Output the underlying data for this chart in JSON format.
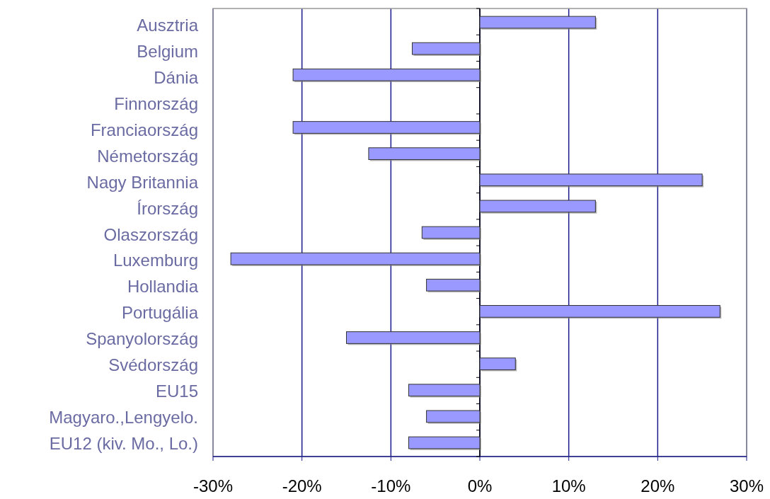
{
  "chart_data": {
    "type": "bar",
    "orientation": "horizontal",
    "categories": [
      "Ausztria",
      "Belgium",
      "Dánia",
      "Finnország",
      "Franciaország",
      "Németország",
      "Nagy Britannia",
      "Írország",
      "Olaszország",
      "Luxemburg",
      "Hollandia",
      "Portugália",
      "Spanyolország",
      "Svédország",
      "EU15",
      "Magyaro.,Lengyelo.",
      "EU12 (kiv. Mo., Lo.)"
    ],
    "values": [
      13,
      -7.6,
      -21,
      null,
      -21,
      -12.5,
      25,
      13,
      -6.5,
      -28,
      -6,
      27,
      -15,
      4,
      -8,
      -6,
      -8
    ],
    "color": "#9999ff",
    "xlim": [
      -30,
      30
    ],
    "xticks": [
      {
        "value": -30,
        "label": "-30%"
      },
      {
        "value": -20,
        "label": "-20%"
      },
      {
        "value": -10,
        "label": "-10%"
      },
      {
        "value": 0,
        "label": "0%"
      },
      {
        "value": 10,
        "label": "10%"
      },
      {
        "value": 20,
        "label": "20%"
      },
      {
        "value": 30,
        "label": "30%"
      }
    ],
    "grid": "x"
  }
}
